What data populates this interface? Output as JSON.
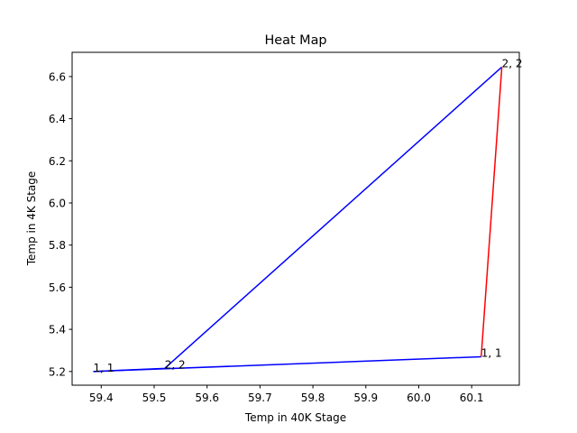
{
  "chart_data": {
    "type": "line",
    "title": "Heat Map",
    "xlabel": "Temp in 40K Stage",
    "ylabel": "Temp in 4K Stage",
    "xlim": [
      59.345,
      60.19
    ],
    "ylim": [
      5.135,
      6.715
    ],
    "x_ticks": [
      59.4,
      59.5,
      59.6,
      59.7,
      59.8,
      59.9,
      60.0,
      60.1
    ],
    "x_tick_labels": [
      "59.4",
      "59.5",
      "59.6",
      "59.7",
      "59.8",
      "59.9",
      "60.0",
      "60.1"
    ],
    "y_ticks": [
      5.2,
      5.4,
      5.6,
      5.8,
      6.0,
      6.2,
      6.4,
      6.6
    ],
    "y_tick_labels": [
      "5.2",
      "5.4",
      "5.6",
      "5.8",
      "6.0",
      "6.2",
      "6.4",
      "6.6"
    ],
    "grid": false,
    "series": [
      {
        "color": "#0000ff",
        "x": [
          59.385,
          59.52,
          60.157
        ],
        "y": [
          5.2,
          5.215,
          6.645
        ]
      },
      {
        "color": "#0000ff",
        "x": [
          59.385,
          60.118
        ],
        "y": [
          5.2,
          5.27
        ]
      },
      {
        "color": "#ff0000",
        "x": [
          60.118,
          60.157
        ],
        "y": [
          5.27,
          6.645
        ]
      }
    ],
    "annotations": [
      {
        "text": "1, 1",
        "x": 59.385,
        "y": 5.2
      },
      {
        "text": "2, 2",
        "x": 59.52,
        "y": 5.215
      },
      {
        "text": "1, 1",
        "x": 60.118,
        "y": 5.27
      },
      {
        "text": "2, 2",
        "x": 60.157,
        "y": 6.645
      }
    ]
  }
}
